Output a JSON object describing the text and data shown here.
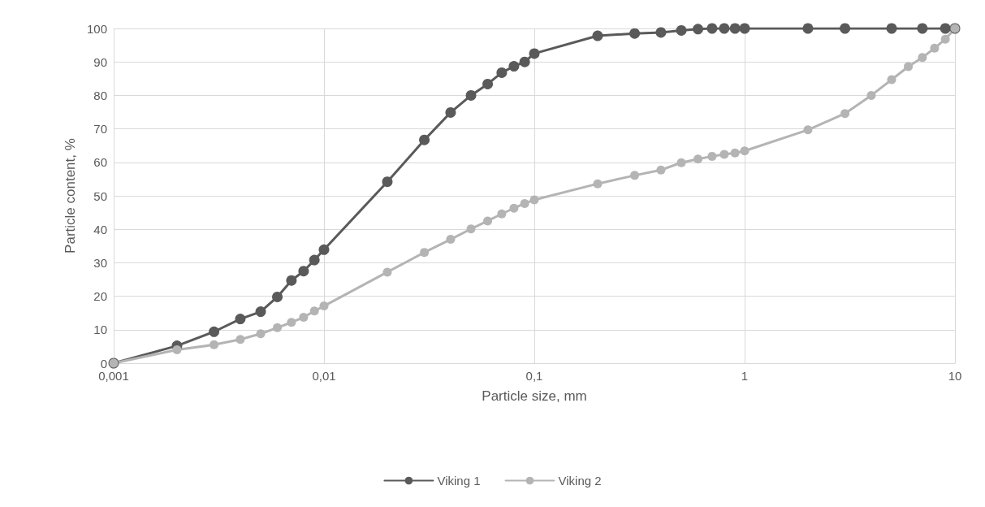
{
  "chart_data": {
    "type": "line",
    "xlabel": "Particle size, mm",
    "ylabel": "Particle content, %",
    "log": "x",
    "grid": true,
    "legend": "bottom",
    "marker": "circle",
    "line_style": "solid",
    "xlim": [
      0.001,
      10
    ],
    "xticks": [
      {
        "value": 0.001,
        "label": "0,001"
      },
      {
        "value": 0.01,
        "label": "0,01"
      },
      {
        "value": 0.1,
        "label": "0,1"
      },
      1,
      10
    ],
    "ylim": [
      0,
      100
    ],
    "yticks": [
      0,
      10,
      20,
      30,
      40,
      50,
      60,
      70,
      80,
      90,
      100
    ],
    "series": [
      {
        "name": "Viking 1",
        "color": "#5a5a5a",
        "x": [
          0.001,
          0.002,
          0.003,
          0.004,
          0.005,
          0.006,
          0.007,
          0.008,
          0.009,
          0.01,
          0.02,
          0.03,
          0.04,
          0.05,
          0.06,
          0.07,
          0.08,
          0.09,
          0.1,
          0.2,
          0.3,
          0.4,
          0.5,
          0.6,
          0.7,
          0.8,
          0.9,
          1,
          2,
          3,
          5,
          7,
          9,
          10
        ],
        "values": [
          0,
          5.2,
          9.4,
          13.2,
          15.4,
          19.8,
          24.7,
          27.5,
          30.8,
          33.9,
          54.2,
          66.7,
          74.9,
          80,
          83.4,
          86.8,
          88.7,
          90,
          92.5,
          97.8,
          98.5,
          98.8,
          99.4,
          99.8,
          100,
          100,
          100,
          100,
          100,
          100,
          100,
          100,
          100,
          100
        ]
      },
      {
        "name": "Viking 2",
        "color": "#b4b4b4",
        "x": [
          0.001,
          0.002,
          0.003,
          0.004,
          0.005,
          0.006,
          0.007,
          0.008,
          0.009,
          0.01,
          0.02,
          0.03,
          0.04,
          0.05,
          0.06,
          0.07,
          0.08,
          0.09,
          0.1,
          0.2,
          0.3,
          0.4,
          0.5,
          0.6,
          0.7,
          0.8,
          0.9,
          1,
          2,
          3,
          4,
          5,
          6,
          7,
          8,
          9,
          10
        ],
        "values": [
          0,
          4,
          5.5,
          7.1,
          8.8,
          10.6,
          12.2,
          13.7,
          15.6,
          17.1,
          27.2,
          33.1,
          37,
          40.1,
          42.5,
          44.6,
          46.3,
          47.7,
          48.8,
          53.6,
          56.1,
          57.7,
          59.9,
          61,
          61.8,
          62.4,
          62.8,
          63.4,
          69.7,
          74.6,
          80,
          84.7,
          88.6,
          91.3,
          94.1,
          96.8,
          100
        ]
      }
    ]
  }
}
